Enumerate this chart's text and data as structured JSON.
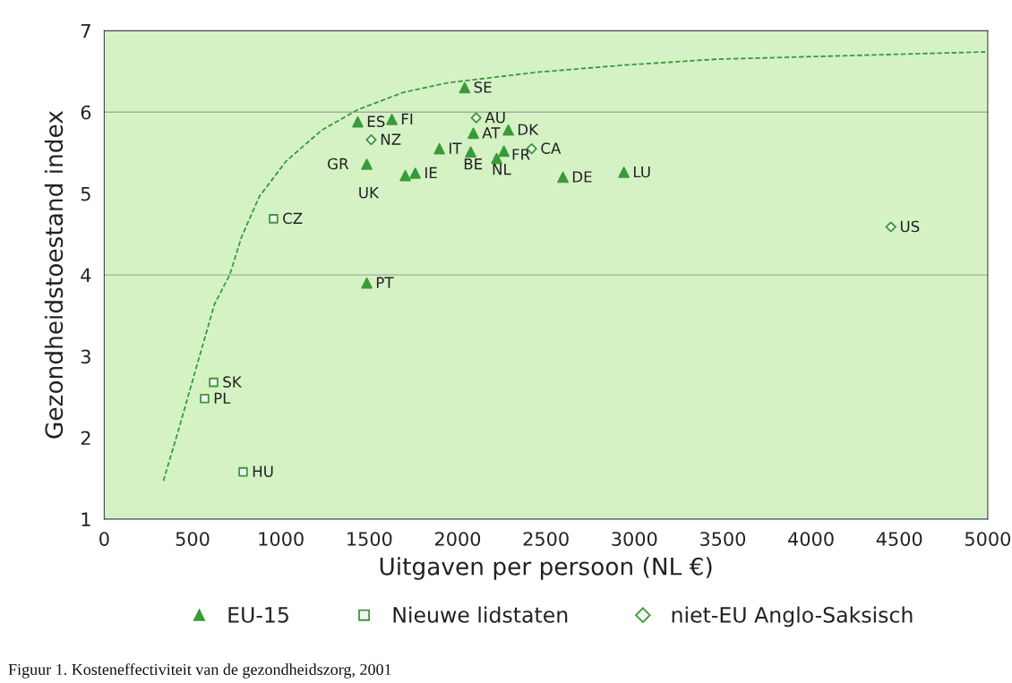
{
  "chart_data": {
    "type": "scatter",
    "xlabel": "Uitgaven per persoon (NL €)",
    "ylabel": "Gezondheidstoestand index",
    "xlim": [
      0,
      5000
    ],
    "ylim": [
      1,
      7
    ],
    "xticks": [
      0,
      500,
      1000,
      1500,
      2000,
      2500,
      3000,
      3500,
      4000,
      4500,
      5000
    ],
    "yticks": [
      1,
      2,
      3,
      4,
      5,
      6,
      7
    ],
    "grid": false,
    "legend": "bottom",
    "ref_lines": [
      {
        "axis": "y",
        "value": 4,
        "color": "#a0b098"
      },
      {
        "axis": "y",
        "value": 6,
        "color": "#a0b098"
      }
    ],
    "series": [
      {
        "name": "EU-15",
        "color": "#3a9a3a",
        "marker": "triangle",
        "x": [
          2040,
          1435,
          1628,
          2089,
          2287,
          1897,
          2074,
          2262,
          2221,
          1486,
          1704,
          1760,
          2596,
          2941,
          1486
        ],
        "values": [
          6.3,
          5.88,
          5.91,
          5.74,
          5.78,
          5.55,
          5.51,
          5.52,
          5.43,
          5.36,
          5.22,
          5.25,
          5.2,
          5.26,
          3.9
        ]
      },
      {
        "name": "Nieuwe lidstaten",
        "color": "#3a9a3a",
        "marker": "square",
        "x": [
          958,
          619,
          568,
          786
        ],
        "values": [
          4.69,
          2.68,
          2.48,
          1.58
        ]
      },
      {
        "name": "niet-EU Anglo-Saksisch",
        "color": "#3a9a3a",
        "marker": "diamond",
        "x": [
          2105,
          1511,
          2419,
          4452
        ],
        "values": [
          5.93,
          5.66,
          5.55,
          4.59
        ]
      },
      {
        "type": "line",
        "color": "#3a9a3a",
        "line_style": "dashed",
        "x": [
          335,
          421,
          522,
          624,
          710,
          776,
          877,
          1030,
          1232,
          1435,
          1689,
          1942,
          2449,
          2956,
          3464,
          3971,
          4478,
          4985
        ],
        "values": [
          1.47,
          2.1,
          2.87,
          3.64,
          4.0,
          4.46,
          4.96,
          5.4,
          5.78,
          6.03,
          6.24,
          6.36,
          6.49,
          6.58,
          6.65,
          6.68,
          6.71,
          6.74
        ]
      }
    ],
    "annotations": [
      {
        "text": "SE",
        "x": 2040,
        "y": 6.3
      },
      {
        "text": "ES",
        "x": 1435,
        "y": 5.88
      },
      {
        "text": "FI",
        "x": 1628,
        "y": 5.91
      },
      {
        "text": "AT",
        "x": 2089,
        "y": 5.74
      },
      {
        "text": "DK",
        "x": 2287,
        "y": 5.78
      },
      {
        "text": "IT",
        "x": 1897,
        "y": 5.55
      },
      {
        "text": "BE",
        "x": 2074,
        "y": 5.51
      },
      {
        "text": "FR",
        "x": 2262,
        "y": 5.52
      },
      {
        "text": "NL",
        "x": 2221,
        "y": 5.43
      },
      {
        "text": "GR",
        "x": 1486,
        "y": 5.36
      },
      {
        "text": "UK",
        "x": 1704,
        "y": 5.22
      },
      {
        "text": "IE",
        "x": 1760,
        "y": 5.25
      },
      {
        "text": "DE",
        "x": 2596,
        "y": 5.2
      },
      {
        "text": "LU",
        "x": 2941,
        "y": 5.26
      },
      {
        "text": "PT",
        "x": 1486,
        "y": 3.9
      },
      {
        "text": "CZ",
        "x": 958,
        "y": 4.69
      },
      {
        "text": "SK",
        "x": 619,
        "y": 2.68
      },
      {
        "text": "PL",
        "x": 568,
        "y": 2.48
      },
      {
        "text": "HU",
        "x": 786,
        "y": 1.58
      },
      {
        "text": "AU",
        "x": 2105,
        "y": 5.93
      },
      {
        "text": "NZ",
        "x": 1511,
        "y": 5.66
      },
      {
        "text": "CA",
        "x": 2419,
        "y": 5.55
      },
      {
        "text": "US",
        "x": 4452,
        "y": 4.59
      },
      "Figuur 1. Kosteneffectiviteit van de gezondheidszorg, 2001"
    ]
  }
}
